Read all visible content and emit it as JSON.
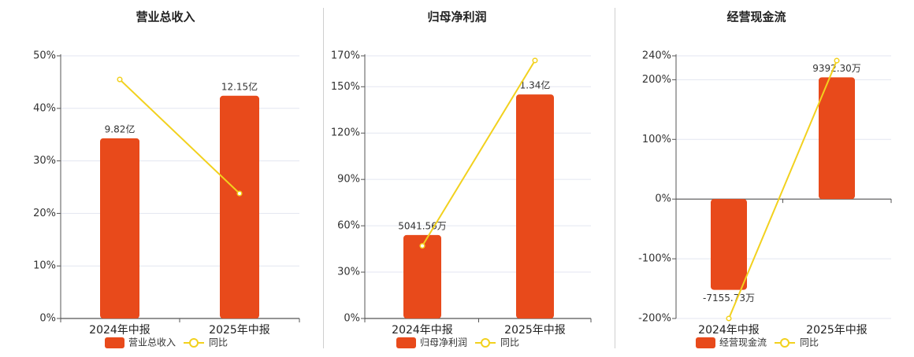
{
  "colors": {
    "bar": "#e84a1b",
    "line": "#f2d11e",
    "grid": "#e3e6f0",
    "axis": "#555555",
    "text": "#333333"
  },
  "legend": {
    "bar_icon": "orange-rounded-rect",
    "line_icon": "yellow-circle-line"
  },
  "chart_data": [
    {
      "type": "bar",
      "title": "营业总收入",
      "categories": [
        "2024年中报",
        "2025年中报"
      ],
      "series": [
        {
          "name": "营业总收入",
          "kind": "bar",
          "values": [
            34.3,
            42.4
          ],
          "labels": [
            "9.82亿",
            "12.15亿"
          ]
        },
        {
          "name": "同比",
          "kind": "line",
          "values": [
            45.5,
            23.8
          ]
        }
      ],
      "yticks": [
        "0%",
        "10%",
        "20%",
        "30%",
        "40%",
        "50%"
      ],
      "ylim": [
        0,
        50
      ],
      "grid": true,
      "legend_position": "bottom"
    },
    {
      "type": "bar",
      "title": "归母净利润",
      "categories": [
        "2024年中报",
        "2025年中报"
      ],
      "series": [
        {
          "name": "归母净利润",
          "kind": "bar",
          "values": [
            54,
            145
          ],
          "labels": [
            "5041.56万",
            "1.34亿"
          ]
        },
        {
          "name": "同比",
          "kind": "line",
          "values": [
            47,
            167
          ]
        }
      ],
      "yticks": [
        "0%",
        "30%",
        "60%",
        "90%",
        "120%",
        "150%",
        "170%"
      ],
      "ylim": [
        0,
        170
      ],
      "grid": true,
      "legend_position": "bottom"
    },
    {
      "type": "bar",
      "title": "经营现金流",
      "categories": [
        "2024年中报",
        "2025年中报"
      ],
      "series": [
        {
          "name": "经营现金流",
          "kind": "bar",
          "values": [
            -152,
            204
          ],
          "labels": [
            "-7155.73万",
            "9392.30万"
          ]
        },
        {
          "name": "同比",
          "kind": "line",
          "values": [
            -200,
            232
          ]
        }
      ],
      "yticks": [
        "-200%",
        "-100%",
        "0%",
        "100%",
        "200%",
        "240%"
      ],
      "ylim": [
        -200,
        240
      ],
      "grid": true,
      "legend_position": "bottom"
    }
  ]
}
